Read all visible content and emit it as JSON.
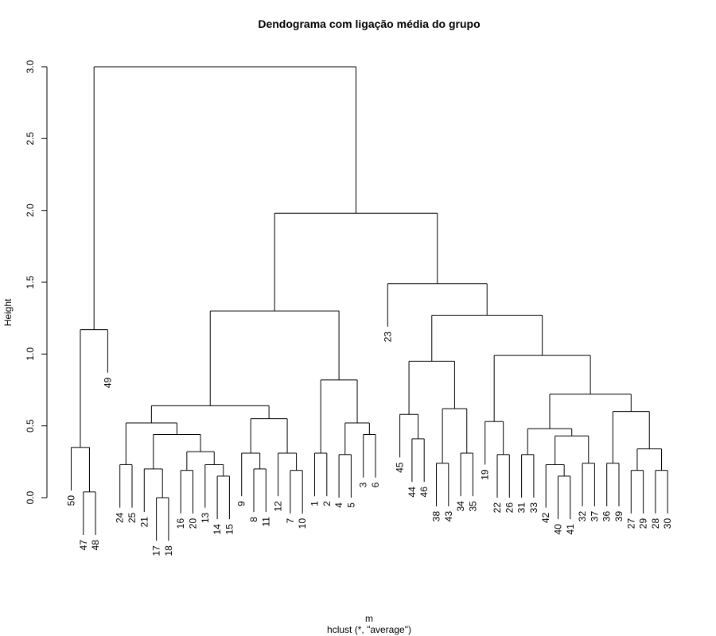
{
  "chart_data": {
    "type": "dendrogram",
    "title": "Dendograma com ligação média do grupo",
    "ylabel": "Height",
    "xlabel": "m",
    "subtitle": "hclust (*, \"average\")",
    "ylim": [
      0,
      3.0
    ],
    "yticks": [
      0.0,
      0.5,
      1.0,
      1.5,
      2.0,
      2.5,
      3.0
    ],
    "ytick_labels": [
      "0.0",
      "0.5",
      "1.0",
      "1.5",
      "2.0",
      "2.5",
      "3.0"
    ],
    "leaves": [
      "50",
      "47",
      "48",
      "49",
      "24",
      "25",
      "21",
      "17",
      "18",
      "16",
      "20",
      "13",
      "14",
      "15",
      "9",
      "8",
      "11",
      "12",
      "7",
      "10",
      "1",
      "2",
      "4",
      "5",
      "3",
      "6",
      "23",
      "45",
      "44",
      "46",
      "38",
      "43",
      "34",
      "35",
      "19",
      "22",
      "26",
      "31",
      "33",
      "42",
      "40",
      "41",
      "32",
      "37",
      "36",
      "39",
      "27",
      "29",
      "28",
      "30"
    ],
    "tree": {
      "h": 3.0,
      "c": [
        {
          "h": 1.17,
          "c": [
            {
              "h": 0.35,
              "c": [
                "50",
                {
                  "h": 0.04,
                  "c": [
                    "47",
                    "48"
                  ]
                }
              ]
            },
            "49"
          ]
        },
        {
          "h": 1.98,
          "c": [
            {
              "h": 1.3,
              "c": [
                {
                  "h": 0.64,
                  "c": [
                    {
                      "h": 0.52,
                      "c": [
                        {
                          "h": 0.23,
                          "c": [
                            "24",
                            "25"
                          ]
                        },
                        {
                          "h": 0.44,
                          "c": [
                            {
                              "h": 0.2,
                              "c": [
                                "21",
                                {
                                  "h": 0.0,
                                  "c": [
                                    "17",
                                    "18"
                                  ]
                                }
                              ]
                            },
                            {
                              "h": 0.32,
                              "c": [
                                {
                                  "h": 0.19,
                                  "c": [
                                    "16",
                                    "20"
                                  ]
                                },
                                {
                                  "h": 0.23,
                                  "c": [
                                    "13",
                                    {
                                      "h": 0.15,
                                      "c": [
                                        "14",
                                        "15"
                                      ]
                                    }
                                  ]
                                }
                              ]
                            }
                          ]
                        }
                      ]
                    },
                    {
                      "h": 0.55,
                      "c": [
                        {
                          "h": 0.31,
                          "c": [
                            "9",
                            {
                              "h": 0.2,
                              "c": [
                                "8",
                                "11"
                              ]
                            }
                          ]
                        },
                        {
                          "h": 0.31,
                          "c": [
                            "12",
                            {
                              "h": 0.19,
                              "c": [
                                "7",
                                "10"
                              ]
                            }
                          ]
                        }
                      ]
                    }
                  ]
                },
                {
                  "h": 0.82,
                  "c": [
                    {
                      "h": 0.31,
                      "c": [
                        "1",
                        "2"
                      ]
                    },
                    {
                      "h": 0.52,
                      "c": [
                        {
                          "h": 0.3,
                          "c": [
                            "4",
                            "5"
                          ]
                        },
                        {
                          "h": 0.44,
                          "c": [
                            "3",
                            "6"
                          ]
                        }
                      ]
                    }
                  ]
                }
              ]
            },
            {
              "h": 1.49,
              "c": [
                "23",
                {
                  "h": 1.27,
                  "c": [
                    {
                      "h": 0.95,
                      "c": [
                        {
                          "h": 0.58,
                          "c": [
                            "45",
                            {
                              "h": 0.41,
                              "c": [
                                "44",
                                "46"
                              ]
                            }
                          ]
                        },
                        {
                          "h": 0.62,
                          "c": [
                            {
                              "h": 0.24,
                              "c": [
                                "38",
                                "43"
                              ]
                            },
                            {
                              "h": 0.31,
                              "c": [
                                "34",
                                "35"
                              ]
                            }
                          ]
                        }
                      ]
                    },
                    {
                      "h": 0.99,
                      "c": [
                        {
                          "h": 0.53,
                          "c": [
                            "19",
                            {
                              "h": 0.3,
                              "c": [
                                "22",
                                "26"
                              ]
                            }
                          ]
                        },
                        {
                          "h": 0.72,
                          "c": [
                            {
                              "h": 0.48,
                              "c": [
                                {
                                  "h": 0.3,
                                  "c": [
                                    "31",
                                    "33"
                                  ]
                                },
                                {
                                  "h": 0.43,
                                  "c": [
                                    {
                                      "h": 0.23,
                                      "c": [
                                        "42",
                                        {
                                          "h": 0.15,
                                          "c": [
                                            "40",
                                            "41"
                                          ]
                                        }
                                      ]
                                    },
                                    {
                                      "h": 0.24,
                                      "c": [
                                        "32",
                                        "37"
                                      ]
                                    }
                                  ]
                                }
                              ]
                            },
                            {
                              "h": 0.6,
                              "c": [
                                {
                                  "h": 0.24,
                                  "c": [
                                    "36",
                                    "39"
                                  ]
                                },
                                {
                                  "h": 0.34,
                                  "c": [
                                    {
                                      "h": 0.19,
                                      "c": [
                                        "27",
                                        "29"
                                      ]
                                    },
                                    {
                                      "h": 0.19,
                                      "c": [
                                        "28",
                                        "30"
                                      ]
                                    }
                                  ]
                                }
                              ]
                            }
                          ]
                        }
                      ]
                    }
                  ]
                }
              ]
            }
          ]
        }
      ]
    }
  }
}
